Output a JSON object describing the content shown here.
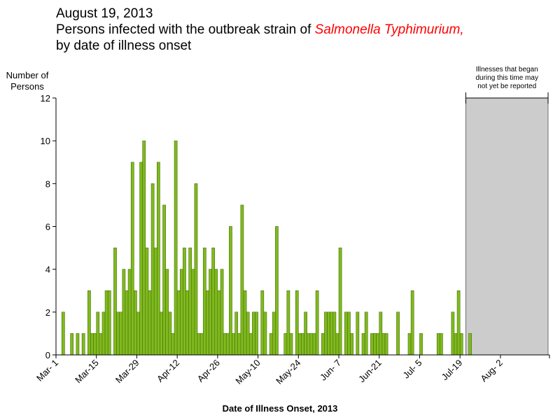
{
  "header": {
    "date": "August 19, 2013",
    "line2_prefix": "Persons infected with the outbreak strain of ",
    "line2_pathogen": "Salmonella Typhimurium,",
    "line3": "by date of illness onset"
  },
  "colors": {
    "bar_fill": "#7fba1e",
    "bar_stroke": "#4a6e0c",
    "shade_fill": "#cccccc",
    "pathogen_text": "#ff0000"
  },
  "chart_data": {
    "type": "bar",
    "title": "Persons infected with the outbreak strain of Salmonella Typhimurium, by date of illness onset",
    "ylabel": [
      "Number of",
      "Persons"
    ],
    "xlabel": "Date of Illness Onset, 2013",
    "ylim": [
      0,
      12
    ],
    "yticks": [
      0,
      2,
      4,
      6,
      8,
      10,
      12
    ],
    "xrange_days": [
      "2013-03-01",
      "2013-08-19"
    ],
    "xticks": [
      {
        "label": "Mar- 1",
        "date": "2013-03-01"
      },
      {
        "label": "Mar-15",
        "date": "2013-03-15"
      },
      {
        "label": "Mar-29",
        "date": "2013-03-29"
      },
      {
        "label": "Apr-12",
        "date": "2013-04-12"
      },
      {
        "label": "Apr-26",
        "date": "2013-04-26"
      },
      {
        "label": "May-10",
        "date": "2013-05-10"
      },
      {
        "label": "May-24",
        "date": "2013-05-24"
      },
      {
        "label": "Jun- 7",
        "date": "2013-06-07"
      },
      {
        "label": "Jun-21",
        "date": "2013-06-21"
      },
      {
        "label": "Jul- 5",
        "date": "2013-07-05"
      },
      {
        "label": "Jul-19",
        "date": "2013-07-19"
      },
      {
        "label": "Aug- 2",
        "date": "2013-08-02"
      }
    ],
    "shaded_region": {
      "start": "2013-07-21",
      "end": "2013-08-19",
      "note": [
        "Illnesses that began",
        "during this time may",
        "not yet be reported"
      ]
    },
    "series": [
      {
        "values": [
          {
            "date": "2013-03-03",
            "count": 2
          },
          {
            "date": "2013-03-06",
            "count": 1
          },
          {
            "date": "2013-03-08",
            "count": 1
          },
          {
            "date": "2013-03-10",
            "count": 1
          },
          {
            "date": "2013-03-12",
            "count": 3
          },
          {
            "date": "2013-03-13",
            "count": 1
          },
          {
            "date": "2013-03-14",
            "count": 1
          },
          {
            "date": "2013-03-15",
            "count": 2
          },
          {
            "date": "2013-03-16",
            "count": 1
          },
          {
            "date": "2013-03-17",
            "count": 2
          },
          {
            "date": "2013-03-18",
            "count": 3
          },
          {
            "date": "2013-03-19",
            "count": 3
          },
          {
            "date": "2013-03-21",
            "count": 5
          },
          {
            "date": "2013-03-22",
            "count": 2
          },
          {
            "date": "2013-03-23",
            "count": 2
          },
          {
            "date": "2013-03-24",
            "count": 4
          },
          {
            "date": "2013-03-25",
            "count": 3
          },
          {
            "date": "2013-03-26",
            "count": 4
          },
          {
            "date": "2013-03-27",
            "count": 9
          },
          {
            "date": "2013-03-28",
            "count": 3
          },
          {
            "date": "2013-03-29",
            "count": 2
          },
          {
            "date": "2013-03-30",
            "count": 9
          },
          {
            "date": "2013-03-31",
            "count": 10
          },
          {
            "date": "2013-04-01",
            "count": 5
          },
          {
            "date": "2013-04-02",
            "count": 3
          },
          {
            "date": "2013-04-03",
            "count": 8
          },
          {
            "date": "2013-04-04",
            "count": 5
          },
          {
            "date": "2013-04-05",
            "count": 9
          },
          {
            "date": "2013-04-06",
            "count": 2
          },
          {
            "date": "2013-04-07",
            "count": 7
          },
          {
            "date": "2013-04-08",
            "count": 4
          },
          {
            "date": "2013-04-09",
            "count": 2
          },
          {
            "date": "2013-04-10",
            "count": 1
          },
          {
            "date": "2013-04-11",
            "count": 10
          },
          {
            "date": "2013-04-12",
            "count": 3
          },
          {
            "date": "2013-04-13",
            "count": 4
          },
          {
            "date": "2013-04-14",
            "count": 5
          },
          {
            "date": "2013-04-15",
            "count": 3
          },
          {
            "date": "2013-04-16",
            "count": 5
          },
          {
            "date": "2013-04-17",
            "count": 4
          },
          {
            "date": "2013-04-18",
            "count": 8
          },
          {
            "date": "2013-04-19",
            "count": 1
          },
          {
            "date": "2013-04-20",
            "count": 1
          },
          {
            "date": "2013-04-21",
            "count": 5
          },
          {
            "date": "2013-04-22",
            "count": 3
          },
          {
            "date": "2013-04-23",
            "count": 4
          },
          {
            "date": "2013-04-24",
            "count": 5
          },
          {
            "date": "2013-04-25",
            "count": 4
          },
          {
            "date": "2013-04-26",
            "count": 3
          },
          {
            "date": "2013-04-27",
            "count": 4
          },
          {
            "date": "2013-04-28",
            "count": 1
          },
          {
            "date": "2013-04-29",
            "count": 1
          },
          {
            "date": "2013-04-30",
            "count": 6
          },
          {
            "date": "2013-05-01",
            "count": 1
          },
          {
            "date": "2013-05-02",
            "count": 2
          },
          {
            "date": "2013-05-03",
            "count": 1
          },
          {
            "date": "2013-05-04",
            "count": 7
          },
          {
            "date": "2013-05-05",
            "count": 3
          },
          {
            "date": "2013-05-06",
            "count": 2
          },
          {
            "date": "2013-05-07",
            "count": 1
          },
          {
            "date": "2013-05-08",
            "count": 2
          },
          {
            "date": "2013-05-09",
            "count": 2
          },
          {
            "date": "2013-05-11",
            "count": 3
          },
          {
            "date": "2013-05-12",
            "count": 2
          },
          {
            "date": "2013-05-14",
            "count": 1
          },
          {
            "date": "2013-05-15",
            "count": 2
          },
          {
            "date": "2013-05-16",
            "count": 6
          },
          {
            "date": "2013-05-19",
            "count": 1
          },
          {
            "date": "2013-05-20",
            "count": 3
          },
          {
            "date": "2013-05-21",
            "count": 1
          },
          {
            "date": "2013-05-23",
            "count": 3
          },
          {
            "date": "2013-05-24",
            "count": 1
          },
          {
            "date": "2013-05-25",
            "count": 1
          },
          {
            "date": "2013-05-26",
            "count": 2
          },
          {
            "date": "2013-05-27",
            "count": 1
          },
          {
            "date": "2013-05-28",
            "count": 1
          },
          {
            "date": "2013-05-29",
            "count": 1
          },
          {
            "date": "2013-05-30",
            "count": 3
          },
          {
            "date": "2013-06-01",
            "count": 1
          },
          {
            "date": "2013-06-02",
            "count": 2
          },
          {
            "date": "2013-06-03",
            "count": 2
          },
          {
            "date": "2013-06-04",
            "count": 2
          },
          {
            "date": "2013-06-05",
            "count": 2
          },
          {
            "date": "2013-06-06",
            "count": 1
          },
          {
            "date": "2013-06-07",
            "count": 5
          },
          {
            "date": "2013-06-09",
            "count": 2
          },
          {
            "date": "2013-06-10",
            "count": 2
          },
          {
            "date": "2013-06-11",
            "count": 1
          },
          {
            "date": "2013-06-13",
            "count": 2
          },
          {
            "date": "2013-06-15",
            "count": 1
          },
          {
            "date": "2013-06-16",
            "count": 2
          },
          {
            "date": "2013-06-18",
            "count": 1
          },
          {
            "date": "2013-06-19",
            "count": 1
          },
          {
            "date": "2013-06-20",
            "count": 1
          },
          {
            "date": "2013-06-21",
            "count": 2
          },
          {
            "date": "2013-06-22",
            "count": 1
          },
          {
            "date": "2013-06-23",
            "count": 1
          },
          {
            "date": "2013-06-27",
            "count": 2
          },
          {
            "date": "2013-07-01",
            "count": 1
          },
          {
            "date": "2013-07-02",
            "count": 3
          },
          {
            "date": "2013-07-05",
            "count": 1
          },
          {
            "date": "2013-07-11",
            "count": 1
          },
          {
            "date": "2013-07-12",
            "count": 1
          },
          {
            "date": "2013-07-16",
            "count": 2
          },
          {
            "date": "2013-07-17",
            "count": 1
          },
          {
            "date": "2013-07-18",
            "count": 3
          },
          {
            "date": "2013-07-19",
            "count": 1
          },
          {
            "date": "2013-07-22",
            "count": 1
          }
        ]
      }
    ]
  }
}
